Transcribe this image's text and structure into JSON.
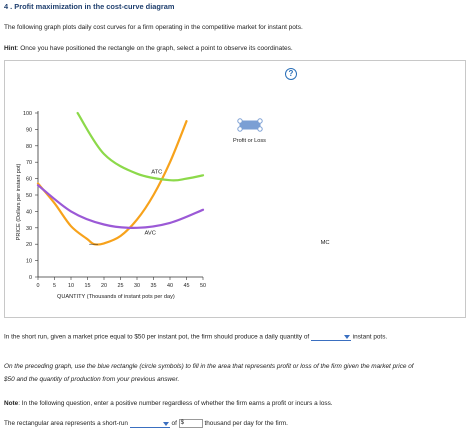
{
  "title": "4 . Profit maximization in the cost-curve diagram",
  "intro": "The following graph plots daily cost curves for a firm operating in the competitive market for instant pots.",
  "hint": {
    "label": "Hint",
    "text": ": Once you have positioned the rectangle on the graph, select a point to observe its coordinates."
  },
  "help_icon": "question-mark",
  "legend": {
    "label": "Profit or Loss"
  },
  "chart_data": {
    "type": "line",
    "xlabel": "QUANTITY (Thousands of instant pots per day)",
    "ylabel": "PRICE (Dollars per instant pot)",
    "xlim": [
      0,
      50
    ],
    "ylim": [
      0,
      100
    ],
    "xticks": [
      0,
      5,
      10,
      15,
      20,
      25,
      30,
      35,
      40,
      45,
      50
    ],
    "yticks": [
      0,
      10,
      20,
      30,
      40,
      50,
      60,
      70,
      80,
      90,
      100
    ],
    "series": [
      {
        "name": "MC",
        "color": "#f7a21b",
        "x": [
          17,
          20,
          25,
          30,
          35,
          40,
          45
        ],
        "y": [
          20,
          20.5,
          25,
          35,
          50,
          70,
          95
        ]
      },
      {
        "name": "ATC",
        "color": "#8cd94a",
        "x": [
          12,
          20,
          30,
          40,
          45,
          50
        ],
        "y": [
          100,
          75,
          63,
          59,
          60,
          62
        ]
      },
      {
        "name": "AVC",
        "color": "#9b59d6",
        "x": [
          0,
          10,
          20,
          30,
          40,
          50
        ],
        "y": [
          56,
          40,
          32,
          30,
          33,
          41
        ]
      }
    ],
    "extra": {
      "name": "MC-lower-branch",
      "x": [
        0,
        5,
        10,
        15,
        17
      ],
      "y": [
        57,
        45,
        31,
        23,
        20
      ]
    }
  },
  "short_run": {
    "before": "In the short run, given a market price equal to $50 per instant pot, the firm should produce a daily quantity of",
    "after": "instant pots."
  },
  "instructions": {
    "line1": "On the preceding graph, use the blue rectangle (circle symbols) to fill in the area that represents profit or loss of the firm given the market price of",
    "line2": "$50 and the quantity of production from your previous answer."
  },
  "note": {
    "label": "Note",
    "text": ": In the following question, enter a positive number regardless of whether the firm earns a profit or incurs a loss."
  },
  "rect_question": {
    "before": "The rectangular area represents a short-run",
    "of": "of",
    "dollar": "$",
    "after": "thousand per day for the firm."
  }
}
